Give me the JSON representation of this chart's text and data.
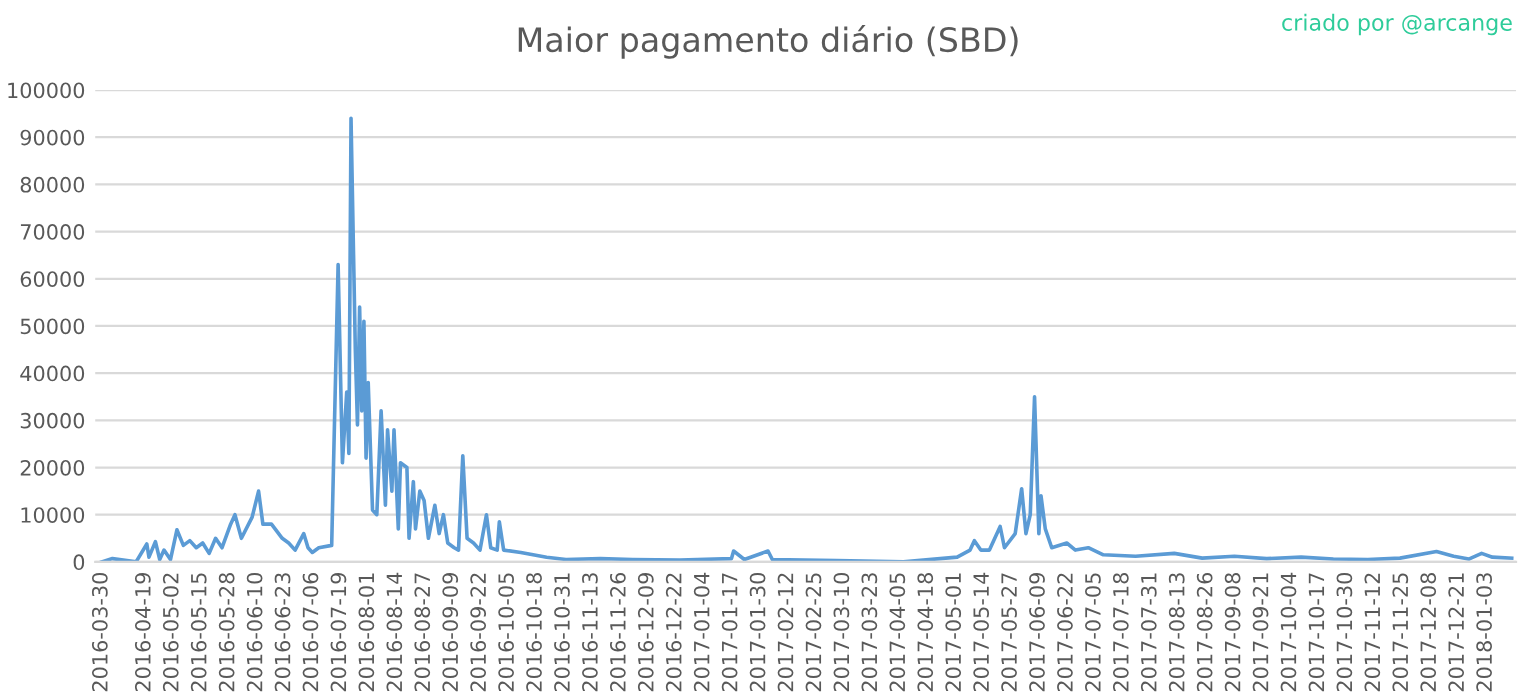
{
  "chart_data": {
    "type": "line",
    "title": "Maior pagamento diário (SBD)",
    "annotations": [
      "criado por @arcange"
    ],
    "x": [
      "2016-03-30",
      "2016-04-04",
      "2016-04-15",
      "2016-04-20",
      "2016-04-21",
      "2016-04-24",
      "2016-04-26",
      "2016-04-28",
      "2016-05-01",
      "2016-05-04",
      "2016-05-07",
      "2016-05-10",
      "2016-05-13",
      "2016-05-16",
      "2016-05-19",
      "2016-05-22",
      "2016-05-25",
      "2016-05-29",
      "2016-05-31",
      "2016-06-03",
      "2016-06-08",
      "2016-06-11",
      "2016-06-13",
      "2016-06-17",
      "2016-06-22",
      "2016-06-25",
      "2016-06-28",
      "2016-07-02",
      "2016-07-04",
      "2016-07-06",
      "2016-07-09",
      "2016-07-15",
      "2016-07-18",
      "2016-07-20",
      "2016-07-22",
      "2016-07-23",
      "2016-07-24",
      "2016-07-26",
      "2016-07-27",
      "2016-07-28",
      "2016-07-29",
      "2016-07-30",
      "2016-07-31",
      "2016-08-01",
      "2016-08-03",
      "2016-08-05",
      "2016-08-07",
      "2016-08-09",
      "2016-08-10",
      "2016-08-12",
      "2016-08-13",
      "2016-08-15",
      "2016-08-16",
      "2016-08-19",
      "2016-08-20",
      "2016-08-22",
      "2016-08-23",
      "2016-08-25",
      "2016-08-27",
      "2016-08-29",
      "2016-09-01",
      "2016-09-03",
      "2016-09-05",
      "2016-09-07",
      "2016-09-10",
      "2016-09-12",
      "2016-09-14",
      "2016-09-16",
      "2016-09-19",
      "2016-09-22",
      "2016-09-25",
      "2016-09-27",
      "2016-09-30",
      "2016-10-01",
      "2016-10-03",
      "2016-10-11",
      "2016-10-23",
      "2016-11-01",
      "2016-11-17",
      "2016-12-02",
      "2016-12-24",
      "2017-01-17",
      "2017-01-18",
      "2017-01-23",
      "2017-02-03",
      "2017-02-05",
      "2017-03-07",
      "2017-04-07",
      "2017-05-02",
      "2017-05-08",
      "2017-05-10",
      "2017-05-13",
      "2017-05-17",
      "2017-05-22",
      "2017-05-24",
      "2017-05-29",
      "2017-06-01",
      "2017-06-03",
      "2017-06-05",
      "2017-06-07",
      "2017-06-09",
      "2017-06-10",
      "2017-06-12",
      "2017-06-15",
      "2017-06-22",
      "2017-06-26",
      "2017-07-02",
      "2017-07-09",
      "2017-07-24",
      "2017-08-11",
      "2017-08-24",
      "2017-09-08",
      "2017-09-23",
      "2017-10-09",
      "2017-10-24",
      "2017-11-09",
      "2017-11-24",
      "2017-12-11",
      "2017-12-19",
      "2017-12-26",
      "2018-01-01",
      "2018-01-06",
      "2018-01-15"
    ],
    "series": [
      {
        "color": "#5b9bd5",
        "values": [
          0,
          700,
          0,
          3800,
          1000,
          4300,
          500,
          2500,
          500,
          6800,
          3500,
          4500,
          3000,
          4000,
          1800,
          5000,
          3000,
          8000,
          10000,
          5000,
          9500,
          15000,
          8000,
          8000,
          5000,
          4000,
          2500,
          6000,
          3000,
          2000,
          3000,
          3500,
          63000,
          21000,
          36000,
          23000,
          94000,
          45000,
          29000,
          54000,
          32000,
          51000,
          22000,
          38000,
          11000,
          10000,
          32000,
          12000,
          28000,
          15000,
          28000,
          7000,
          21000,
          20000,
          5000,
          17000,
          7000,
          15000,
          13000,
          5000,
          12000,
          6000,
          10000,
          4000,
          3000,
          2500,
          22500,
          5000,
          4000,
          2500,
          10000,
          3000,
          2500,
          8500,
          2500,
          2000,
          1000,
          500,
          700,
          500,
          400,
          700,
          2300,
          500,
          2300,
          500,
          300,
          0,
          1000,
          2500,
          4500,
          2500,
          2500,
          7500,
          3000,
          6000,
          15500,
          6000,
          10000,
          35000,
          6000,
          14000,
          7000,
          3000,
          4000,
          2500,
          3000,
          1500,
          1200,
          1800,
          800,
          1200,
          700,
          1000,
          600,
          500,
          800,
          2200,
          1200,
          600,
          1800,
          1000,
          800
        ]
      }
    ],
    "xlim": [
      "2016-03-27",
      "2018-01-17"
    ],
    "xticks": [
      "2016-03-30",
      "2016-04-19",
      "2016-05-02",
      "2016-05-15",
      "2016-05-28",
      "2016-06-10",
      "2016-06-23",
      "2016-07-06",
      "2016-07-19",
      "2016-08-01",
      "2016-08-14",
      "2016-08-27",
      "2016-09-09",
      "2016-09-22",
      "2016-10-05",
      "2016-10-18",
      "2016-10-31",
      "2016-11-13",
      "2016-11-26",
      "2016-12-09",
      "2016-12-22",
      "2017-01-04",
      "2017-01-17",
      "2017-01-30",
      "2017-02-12",
      "2017-02-25",
      "2017-03-10",
      "2017-03-23",
      "2017-04-05",
      "2017-04-18",
      "2017-05-01",
      "2017-05-14",
      "2017-05-27",
      "2017-06-09",
      "2017-06-22",
      "2017-07-05",
      "2017-07-18",
      "2017-07-31",
      "2017-08-13",
      "2017-08-26",
      "2017-09-08",
      "2017-09-21",
      "2017-10-04",
      "2017-10-17",
      "2017-10-30",
      "2017-11-12",
      "2017-11-25",
      "2017-12-08",
      "2017-12-21",
      "2018-01-03"
    ],
    "ylim": [
      0,
      100000
    ],
    "yticks": [
      0,
      10000,
      20000,
      30000,
      40000,
      50000,
      60000,
      70000,
      80000,
      90000,
      100000
    ],
    "grid": "y",
    "marker": "none",
    "line_style": "solid"
  }
}
